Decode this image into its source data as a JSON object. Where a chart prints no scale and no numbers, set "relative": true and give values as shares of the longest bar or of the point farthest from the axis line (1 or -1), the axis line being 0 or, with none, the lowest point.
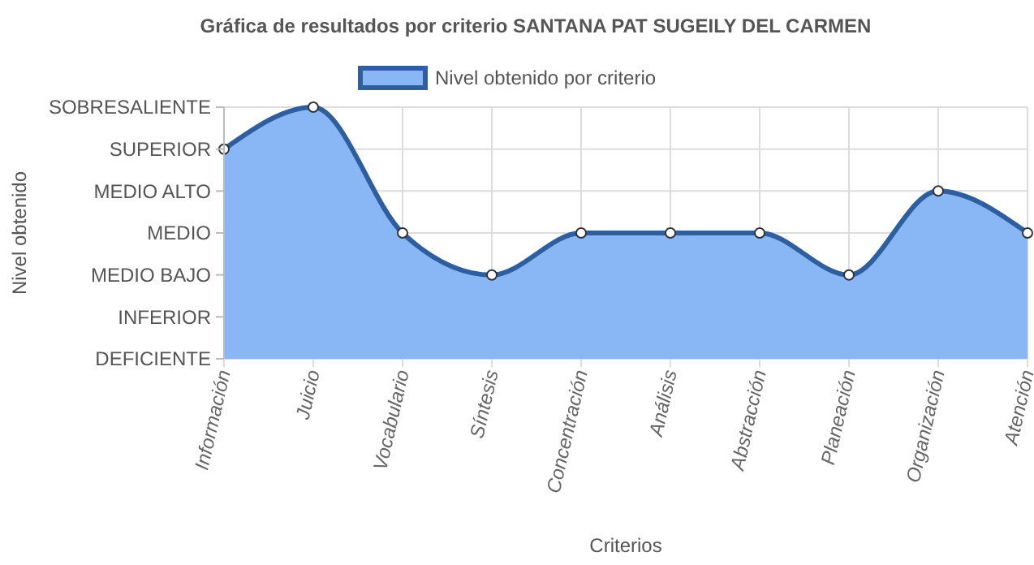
{
  "chart_data": {
    "type": "area",
    "title": "Gráfica de resultados por criterio  SANTANA PAT SUGEILY DEL CARMEN",
    "xlabel": "Criterios",
    "annotations": [
      "Nivel obtenido"
    ],
    "categories": [
      "Información",
      "Juicio",
      "Vocabulario",
      "Síntesis",
      "Concentración",
      "Análisis",
      "Abstracción",
      "Planeación",
      "Organización",
      "Atención"
    ],
    "series": [
      {
        "name": "Nivel obtenido por criterio",
        "color": "#2f5e9e",
        "values": [
          0.833,
          1,
          0.5,
          0.333,
          0.5,
          0.5,
          0.5,
          0.333,
          0.667,
          0.5
        ]
      }
    ],
    "relative": true,
    "y_categories": [
      "SOBRESALIENTE",
      "SUPERIOR",
      "MEDIO ALTO",
      "MEDIO",
      "MEDIO BAJO",
      "INFERIOR",
      "DEFICIENTE"
    ],
    "grid": true,
    "legend": "top",
    "marker": "circle",
    "line_style": "solid"
  }
}
